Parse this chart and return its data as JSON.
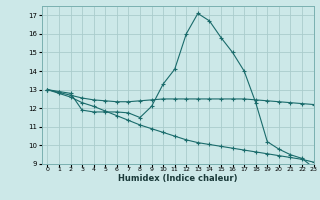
{
  "xlabel": "Humidex (Indice chaleur)",
  "bg_color": "#cce8e8",
  "grid_color": "#aacccc",
  "line_color": "#1a6b6b",
  "xlim": [
    -0.5,
    23
  ],
  "ylim": [
    9,
    17.5
  ],
  "yticks": [
    9,
    10,
    11,
    12,
    13,
    14,
    15,
    16,
    17
  ],
  "xticks": [
    0,
    1,
    2,
    3,
    4,
    5,
    6,
    7,
    8,
    9,
    10,
    11,
    12,
    13,
    14,
    15,
    16,
    17,
    18,
    19,
    20,
    21,
    22,
    23
  ],
  "series1_x": [
    0,
    1,
    2,
    3,
    4,
    5,
    6,
    7,
    8,
    9,
    10,
    11,
    12,
    13,
    14,
    15,
    16,
    17,
    18,
    19,
    20,
    21,
    22,
    23
  ],
  "series1_y": [
    13.0,
    12.9,
    12.8,
    11.9,
    11.8,
    11.8,
    11.8,
    11.75,
    11.5,
    12.1,
    13.3,
    14.1,
    16.0,
    17.1,
    16.7,
    15.8,
    15.0,
    14.0,
    12.3,
    10.2,
    9.8,
    9.5,
    9.3,
    8.8
  ],
  "series2_x": [
    0,
    1,
    2,
    3,
    4,
    5,
    6,
    7,
    8,
    9,
    10,
    11,
    12,
    13,
    14,
    15,
    16,
    17,
    18,
    19,
    20,
    21,
    22,
    23
  ],
  "series2_y": [
    13.0,
    12.85,
    12.7,
    12.55,
    12.45,
    12.4,
    12.35,
    12.35,
    12.4,
    12.45,
    12.5,
    12.5,
    12.5,
    12.5,
    12.5,
    12.5,
    12.5,
    12.5,
    12.45,
    12.4,
    12.35,
    12.3,
    12.25,
    12.2
  ],
  "series3_x": [
    0,
    1,
    2,
    3,
    4,
    5,
    6,
    7,
    8,
    9,
    10,
    11,
    12,
    13,
    14,
    15,
    16,
    17,
    18,
    19,
    20,
    21,
    22,
    23
  ],
  "series3_y": [
    13.0,
    12.8,
    12.6,
    12.3,
    12.1,
    11.85,
    11.6,
    11.35,
    11.1,
    10.9,
    10.7,
    10.5,
    10.3,
    10.15,
    10.05,
    9.95,
    9.85,
    9.75,
    9.65,
    9.55,
    9.45,
    9.35,
    9.25,
    9.1
  ]
}
